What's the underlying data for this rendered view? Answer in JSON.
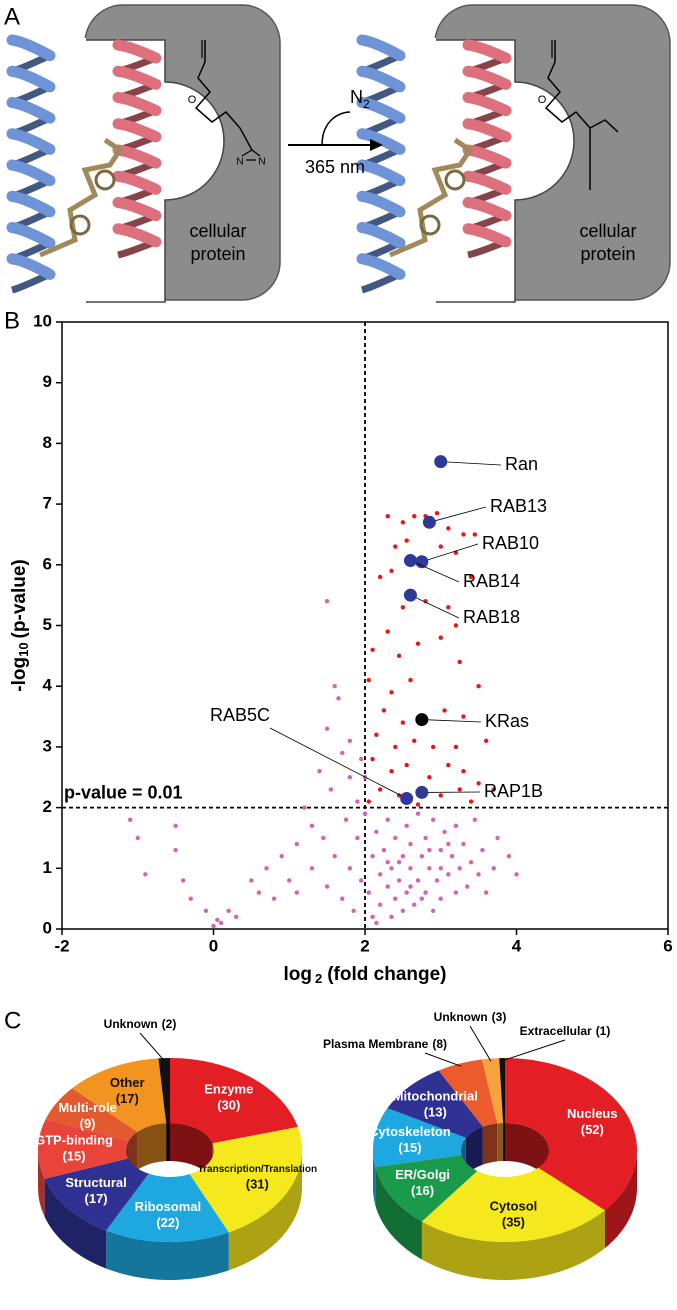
{
  "diagram": {
    "panel_label": "A",
    "gas": "N",
    "gas_subscript": "2",
    "wavelength": "365 nm",
    "protein_label": [
      "cellular",
      "protein"
    ],
    "ketone_atom": "O",
    "diazirine_atoms": [
      "N",
      "N"
    ]
  },
  "panel_labels": {
    "b": "B",
    "c": "C"
  },
  "chart_data": [
    {
      "type": "scatter",
      "xlabel": {
        "main": "log",
        "subscript": "2",
        "rest": "(fold change)"
      },
      "ylabel": {
        "main": "-log",
        "subscript": "10",
        "rest": "(p-value)"
      },
      "xlim": [
        -2,
        6
      ],
      "xticks": [
        -2,
        0,
        2,
        4,
        6
      ],
      "ylim": [
        0,
        10
      ],
      "yticks": [
        0,
        1,
        2,
        3,
        4,
        5,
        6,
        7,
        8,
        9,
        10
      ],
      "vline": 2,
      "hline": 2,
      "hline_label": "p-value = 0.01",
      "series": [
        {
          "color": "#d462b6",
          "size": 2.2,
          "x": [
            -1.1,
            -1.0,
            -0.9,
            -0.5,
            -0.5,
            -0.4,
            -0.3,
            -0.1,
            0,
            0.05,
            0.1,
            0.2,
            0.3,
            0.5,
            0.6,
            0.7,
            0.8,
            0.9,
            1.0,
            1.1,
            1.1,
            1.2,
            1.3,
            1.3,
            1.4,
            1.45,
            1.5,
            1.5,
            1.5,
            1.55,
            1.6,
            1.6,
            1.65,
            1.7,
            1.7,
            1.75,
            1.8,
            1.8,
            1.8,
            1.85,
            1.9,
            1.9,
            1.95,
            2.0,
            2.05,
            2.1,
            2.1,
            2.15,
            2.2,
            2.2,
            2.25,
            2.3,
            2.3,
            2.35,
            2.4,
            2.4,
            2.45,
            2.5,
            2.5,
            2.55,
            2.55,
            2.6,
            2.6,
            2.65,
            2.7,
            2.7,
            2.75,
            2.8,
            2.8,
            2.85,
            2.9,
            2.9,
            2.95,
            3.0,
            3.0,
            3.05,
            3.1,
            3.15,
            3.2,
            3.2,
            3.25,
            3.3,
            3.35,
            3.4,
            3.45,
            3.5,
            3.55,
            3.6,
            3.7,
            3.75,
            3.9,
            4.0,
            2.15,
            2.3,
            2.45,
            2.6,
            2.75,
            2.85,
            3.0,
            3.1,
            2.35,
            2.0,
            1.95
          ],
          "values": [
            1.8,
            1.5,
            0.9,
            1.7,
            1.3,
            0.8,
            0.5,
            0.3,
            0.05,
            0.15,
            0.1,
            0.3,
            0.2,
            0.8,
            0.6,
            1.0,
            0.5,
            1.2,
            0.8,
            1.4,
            0.6,
            2.0,
            1.7,
            1.0,
            2.6,
            1.5,
            5.4,
            3.3,
            0.7,
            2.3,
            4.0,
            1.2,
            3.8,
            2.9,
            0.5,
            1.8,
            2.5,
            3.1,
            1.0,
            0.3,
            2.1,
            1.5,
            0.8,
            1.9,
            0.6,
            1.2,
            0.2,
            1.6,
            0.9,
            0.4,
            1.3,
            1.8,
            0.7,
            1.0,
            0.5,
            1.5,
            0.8,
            1.2,
            0.3,
            1.7,
            0.6,
            1.0,
            1.4,
            0.4,
            0.8,
            1.9,
            1.2,
            0.6,
            1.5,
            1.0,
            0.3,
            1.8,
            0.8,
            1.3,
            0.5,
            1.6,
            0.9,
            1.2,
            0.6,
            1.7,
            1.0,
            1.4,
            0.7,
            1.1,
            1.8,
            0.9,
            1.3,
            0.6,
            1.0,
            1.5,
            1.2,
            0.9,
            0.1,
            1.1,
            1.1,
            0.7,
            0.5,
            1.3,
            1.0,
            1.4,
            0.2,
            2.5,
            2.8
          ]
        },
        {
          "color": "#e8151b",
          "size": 2.2,
          "x": [
            2.3,
            2.5,
            2.65,
            2.8,
            2.95,
            3.1,
            3.3,
            3.45,
            2.4,
            2.55,
            3.0,
            3.2,
            2.2,
            2.35,
            3.4,
            2.5,
            2.8,
            3.1,
            3.2,
            2.3,
            2.1,
            2.45,
            2.7,
            3.0,
            3.25,
            2.05,
            2.35,
            2.6,
            3.5,
            2.25,
            2.5,
            3.05,
            3.3,
            2.15,
            2.4,
            2.65,
            2.9,
            3.2,
            3.6,
            2.1,
            2.35,
            2.55,
            2.85,
            3.1,
            3.3,
            3.5,
            2.2,
            2.45,
            3.0,
            3.25,
            3.7,
            2.05,
            3.4,
            2.7
          ],
          "values": [
            6.8,
            6.7,
            6.8,
            6.8,
            6.85,
            6.6,
            6.5,
            6.5,
            6.3,
            6.4,
            6.3,
            6.2,
            5.8,
            5.9,
            5.8,
            5.3,
            5.4,
            5.3,
            5.0,
            4.9,
            4.6,
            4.5,
            4.7,
            4.8,
            4.4,
            4.1,
            3.9,
            4.1,
            4.0,
            3.6,
            3.4,
            3.6,
            3.5,
            3.2,
            3.0,
            3.1,
            3.0,
            3.0,
            3.1,
            2.8,
            2.6,
            2.7,
            2.5,
            2.7,
            2.6,
            2.4,
            2.3,
            2.2,
            2.2,
            2.3,
            2.3,
            2.1,
            2.1,
            2.05
          ]
        },
        {
          "color": "#2e3a97",
          "size": 6.5,
          "x": [
            3.0,
            2.85,
            2.75,
            2.6,
            2.6,
            2.55,
            2.75
          ],
          "values": [
            7.7,
            6.7,
            6.05,
            6.07,
            5.5,
            2.15,
            2.25
          ],
          "labels": [
            "Ran",
            "RAB13",
            "RAB10",
            "RAB14",
            "RAB18",
            "RAB5C",
            "RAP1B"
          ]
        },
        {
          "color": "#000000",
          "size": 6.5,
          "x": [
            2.75
          ],
          "values": [
            3.45
          ],
          "labels": [
            "KRas"
          ]
        }
      ]
    },
    {
      "type": "donut",
      "categories": [
        "Enzyme",
        "Transcription/Translation",
        "Ribosomal",
        "Structural",
        "GTP-binding",
        "Multi-role",
        "Other",
        "Unknown"
      ],
      "values": [
        30,
        31,
        22,
        17,
        15,
        9,
        17,
        2
      ],
      "value_labels": [
        "(30)",
        "(31)",
        "(22)",
        "(17)",
        "(15)",
        "(9)",
        "(17)",
        "(2)"
      ],
      "colors": [
        "#e31e24",
        "#f5e81c",
        "#1ea8e0",
        "#2e3192",
        "#e9443a",
        "#e35a2e",
        "#f39420",
        "#111111"
      ]
    },
    {
      "type": "donut",
      "categories": [
        "Nucleus",
        "Cytosol",
        "ER/Golgi",
        "Cytoskeleton",
        "Mitochondrial",
        "Plasma Membrane",
        "Unknown",
        "Extracellular"
      ],
      "values": [
        52,
        35,
        16,
        15,
        13,
        8,
        3,
        1
      ],
      "value_labels": [
        "(52)",
        "(35)",
        "(16)",
        "(15)",
        "(13)",
        "(8)",
        "(3)",
        "(1)"
      ],
      "colors": [
        "#e31e24",
        "#f5e81c",
        "#1a9b4b",
        "#1ea8e0",
        "#2e3192",
        "#ec5b2b",
        "#f7a33c",
        "#111111"
      ]
    }
  ]
}
